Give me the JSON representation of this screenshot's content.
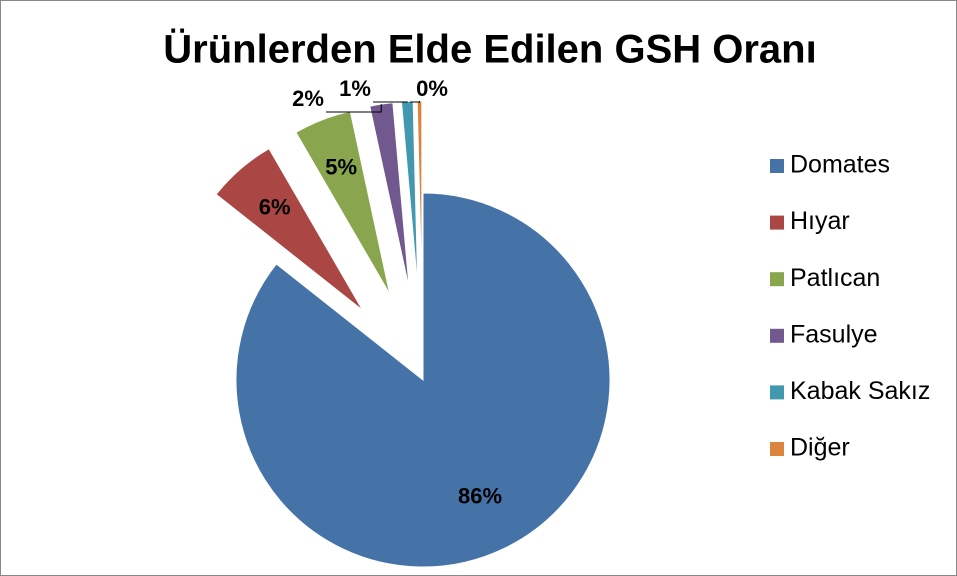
{
  "chart_data": {
    "type": "pie",
    "title": "Ürünlerden Elde Edilen GSH Oranı",
    "categories": [
      "Domates",
      "Hıyar",
      "Patlıcan",
      "Fasulye",
      "Kabak Sakız",
      "Diğer"
    ],
    "values": [
      86,
      6,
      5,
      2,
      1,
      0.4
    ],
    "value_labels": [
      "86%",
      "6%",
      "5%",
      "2%",
      "1%",
      "0%"
    ],
    "colors": [
      "#4572a7",
      "#aa4643",
      "#89a54e",
      "#71588f",
      "#4198af",
      "#db843d"
    ],
    "legend": "right"
  }
}
